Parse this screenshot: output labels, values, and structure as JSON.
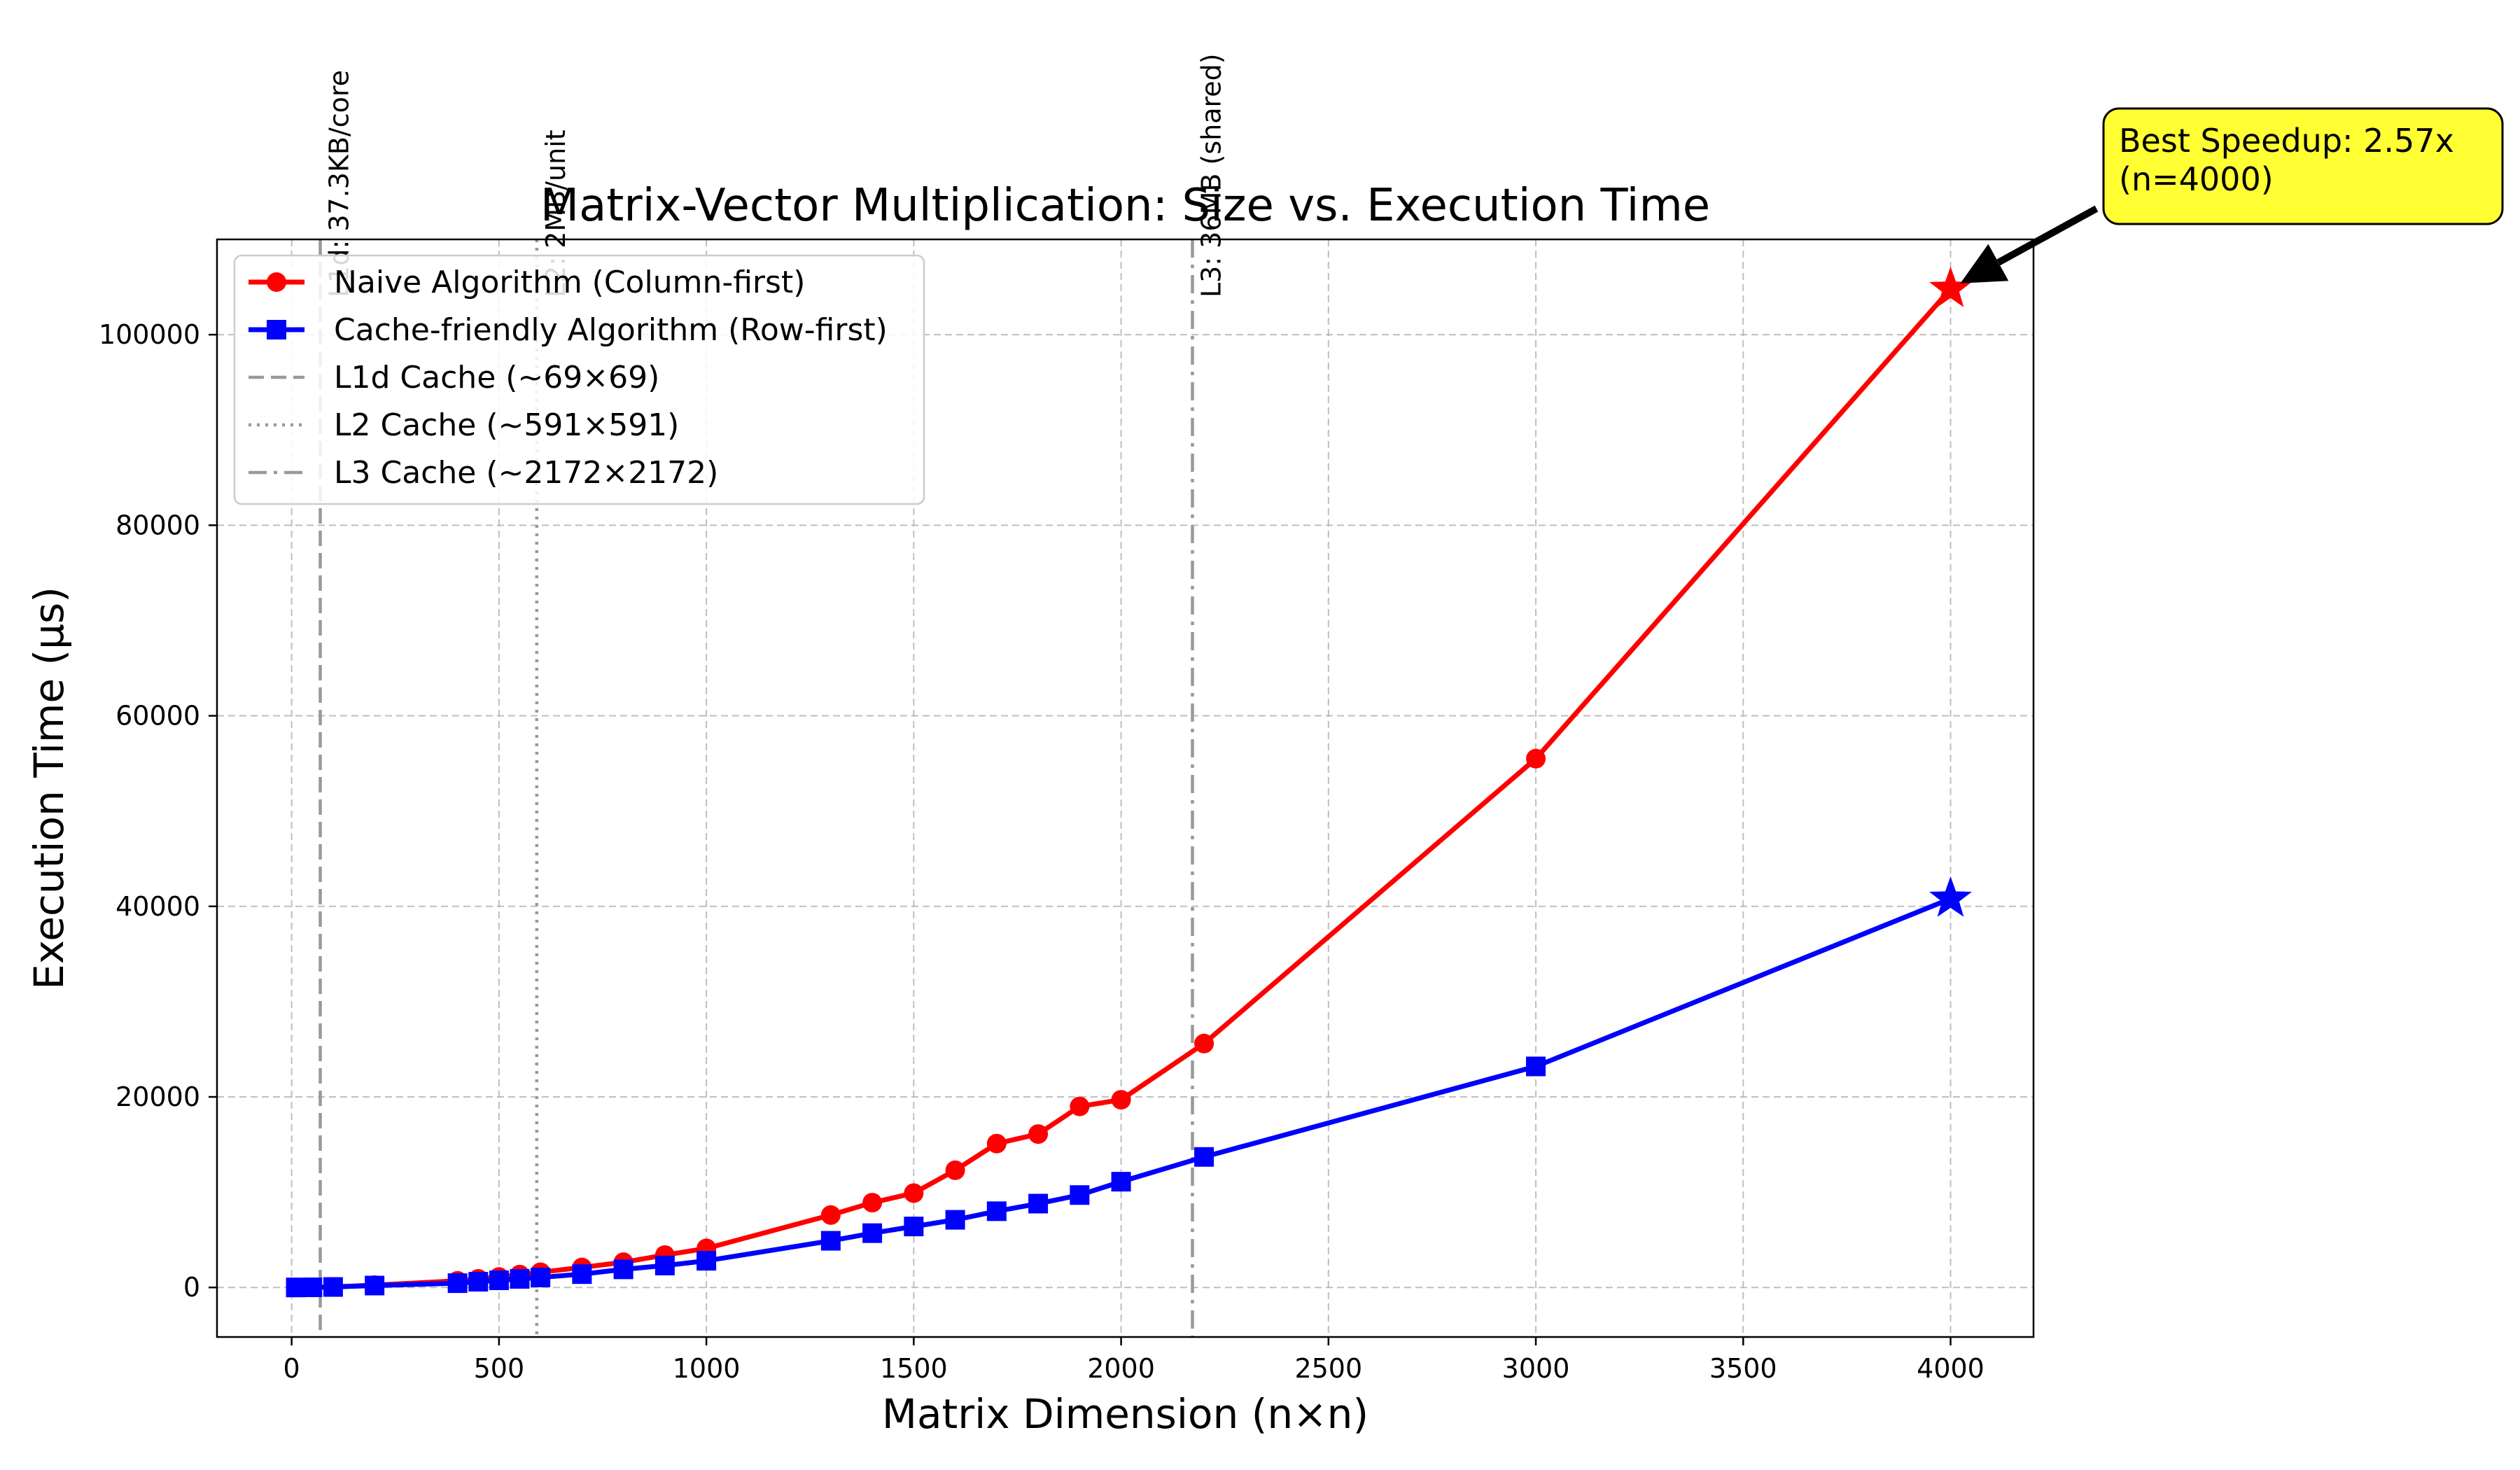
{
  "chart_data": {
    "type": "line",
    "title": "Matrix-Vector Multiplication: Size vs. Execution Time",
    "xlabel": "Matrix Dimension (n×n)",
    "ylabel": "Execution Time (μs)",
    "xlim": [
      -180,
      4200
    ],
    "ylim": [
      -5200,
      110000
    ],
    "xticks": [
      0,
      500,
      1000,
      1500,
      2000,
      2500,
      3000,
      3500,
      4000
    ],
    "yticks": [
      0,
      20000,
      40000,
      60000,
      80000,
      100000
    ],
    "grid": true,
    "legend_position": "top-left",
    "x": [
      10,
      50,
      100,
      200,
      400,
      450,
      500,
      550,
      600,
      700,
      800,
      900,
      1000,
      1300,
      1400,
      1500,
      1600,
      1700,
      1800,
      1900,
      2000,
      2200,
      3000,
      4000
    ],
    "series": [
      {
        "name": "Naive Algorithm (Column-first)",
        "color": "#ff0000",
        "marker": "circle",
        "values": [
          2,
          20,
          60,
          250,
          700,
          900,
          1100,
          1350,
          1600,
          2100,
          2650,
          3400,
          4100,
          7600,
          8900,
          9900,
          12300,
          15100,
          16100,
          19000,
          19700,
          25600,
          55500,
          104800
        ]
      },
      {
        "name": "Cache-friendly Algorithm (Row-first)",
        "color": "#0000ff",
        "marker": "square",
        "values": [
          2,
          15,
          50,
          200,
          450,
          600,
          750,
          900,
          1050,
          1400,
          1900,
          2300,
          2800,
          4900,
          5700,
          6400,
          7100,
          8000,
          8800,
          9700,
          11100,
          13700,
          23200,
          40800
        ]
      }
    ],
    "cache_lines": [
      {
        "name": "L1d Cache (~69×69)",
        "x": 69,
        "style": "dashed",
        "label": "L1d: 37.3KB/core"
      },
      {
        "name": "L2 Cache (~591×591)",
        "x": 591,
        "style": "dotted",
        "label": "L2: 2MB/unit"
      },
      {
        "name": "L3 Cache (~2172×2172)",
        "x": 2172,
        "style": "dashdot",
        "label": "L3: 36MB (shared)"
      }
    ],
    "annotation": {
      "text_line1": "Best Speedup: 2.57x",
      "text_line2": "(n=4000)",
      "box_color": "#ffff33",
      "target_x": 4000,
      "target_y": 104800
    },
    "highlight_markers": [
      {
        "x": 4000,
        "y": 104800,
        "color": "#ff0000",
        "marker": "star"
      },
      {
        "x": 4000,
        "y": 40800,
        "color": "#0000ff",
        "marker": "star"
      }
    ]
  }
}
